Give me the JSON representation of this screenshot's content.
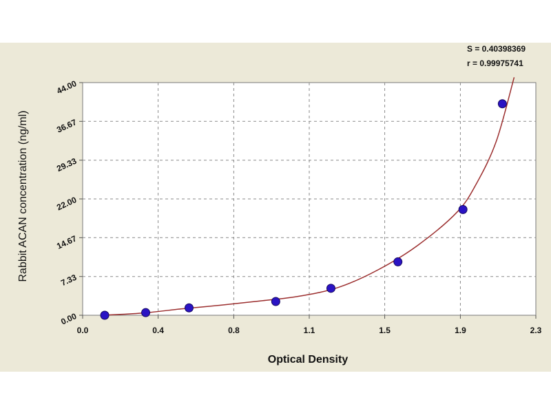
{
  "chart_data": {
    "type": "scatter",
    "title": "",
    "xlabel": "Optical Density",
    "ylabel": "Rabbit ACAN concentration (ng/ml)",
    "xlim": [
      0.0,
      2.3
    ],
    "ylim": [
      0.0,
      44.0
    ],
    "x_ticks": [
      "0.0",
      "0.4",
      "0.8",
      "1.1",
      "1.5",
      "1.9",
      "2.3"
    ],
    "x_tick_values": [
      0.0,
      0.383,
      0.767,
      1.15,
      1.533,
      1.917,
      2.3
    ],
    "y_ticks": [
      "0.00",
      "7.33",
      "14.67",
      "22.00",
      "29.33",
      "36.67",
      "44.00"
    ],
    "y_tick_values": [
      0.0,
      7.33,
      14.67,
      22.0,
      29.33,
      36.67,
      44.0
    ],
    "grid": true,
    "series": [
      {
        "x": [
          0.112,
          0.32,
          0.54,
          0.98,
          1.26,
          1.6,
          1.93,
          2.13
        ],
        "y": [
          0.0,
          0.5,
          1.4,
          2.6,
          5.1,
          10.1,
          20.0,
          40.0
        ],
        "marker_color": "#2a13c4"
      }
    ],
    "fit_curve": {
      "color": "#9b2d2d",
      "x": [
        0.1,
        0.3,
        0.5,
        0.7,
        0.9,
        1.1,
        1.3,
        1.5,
        1.7,
        1.9,
        2.0,
        2.1,
        2.19
      ],
      "y": [
        0.0,
        0.4,
        1.2,
        1.9,
        2.7,
        3.6,
        5.3,
        8.6,
        13.2,
        19.5,
        25.0,
        33.0,
        45.0
      ]
    },
    "annotations": {
      "s": "S = 0.40398369",
      "r": "r = 0.99975741"
    }
  }
}
